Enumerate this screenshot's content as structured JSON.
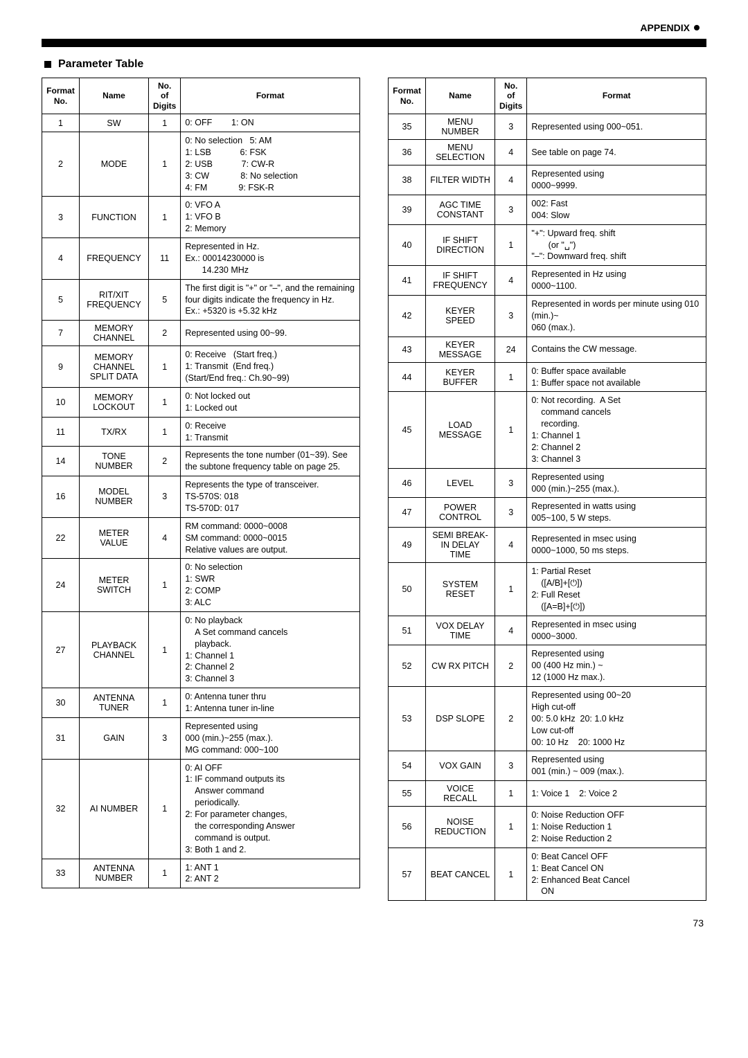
{
  "header": {
    "appendix": "APPENDIX"
  },
  "section_title": "Parameter Table",
  "page_number": "73",
  "table_left": {
    "headers": [
      "Format No.",
      "Name",
      "No. of Digits",
      "Format"
    ],
    "rows": [
      {
        "no": "1",
        "name": "SW",
        "digits": "1",
        "fmt": "0: OFF        1: ON"
      },
      {
        "no": "2",
        "name": "MODE",
        "digits": "1",
        "fmt": "0: No selection   5: AM\n1: LSB            6: FSK\n2: USB            7: CW-R\n3: CW             8: No selection\n4: FM             9: FSK-R"
      },
      {
        "no": "3",
        "name": "FUNCTION",
        "digits": "1",
        "fmt": "0: VFO A\n1: VFO B\n2: Memory"
      },
      {
        "no": "4",
        "name": "FREQUENCY",
        "digits": "11",
        "fmt": "Represented in Hz.\nEx.: 00014230000 is\n       14.230 MHz"
      },
      {
        "no": "5",
        "name": "RIT/XIT FREQUENCY",
        "digits": "5",
        "fmt": "The first digit is \"+\" or \"–\", and the remaining four digits indicate the frequency in Hz.\nEx.: +5320 is +5.32 kHz"
      },
      {
        "no": "7",
        "name": "MEMORY CHANNEL",
        "digits": "2",
        "fmt": "Represented using 00~99."
      },
      {
        "no": "9",
        "name": "MEMORY CHANNEL SPLIT DATA",
        "digits": "1",
        "fmt": "0: Receive   (Start freq.)\n1: Transmit  (End freq.)\n(Start/End freq.: Ch.90~99)"
      },
      {
        "no": "10",
        "name": "MEMORY LOCKOUT",
        "digits": "1",
        "fmt": "0: Not locked out\n1: Locked out"
      },
      {
        "no": "11",
        "name": "TX/RX",
        "digits": "1",
        "fmt": "0: Receive\n1: Transmit"
      },
      {
        "no": "14",
        "name": "TONE NUMBER",
        "digits": "2",
        "fmt": "Represents the tone number (01~39). See the subtone frequency table on page 25."
      },
      {
        "no": "16",
        "name": "MODEL NUMBER",
        "digits": "3",
        "fmt": "Represents the type of transceiver.\nTS-570S: 018\nTS-570D: 017"
      },
      {
        "no": "22",
        "name": "METER VALUE",
        "digits": "4",
        "fmt": "RM command: 0000~0008\nSM command: 0000~0015\nRelative values are output."
      },
      {
        "no": "24",
        "name": "METER SWITCH",
        "digits": "1",
        "fmt": "0: No selection\n1: SWR\n2: COMP\n3: ALC"
      },
      {
        "no": "27",
        "name": "PLAYBACK CHANNEL",
        "digits": "1",
        "fmt": "0: No playback\n    A Set command cancels\n    playback.\n1: Channel 1\n2: Channel 2\n3: Channel 3"
      },
      {
        "no": "30",
        "name": "ANTENNA TUNER",
        "digits": "1",
        "fmt": "0: Antenna tuner thru\n1: Antenna tuner in-line"
      },
      {
        "no": "31",
        "name": "GAIN",
        "digits": "3",
        "fmt": "Represented using\n000 (min.)~255 (max.).\nMG command: 000~100"
      },
      {
        "no": "32",
        "name": "AI NUMBER",
        "digits": "1",
        "fmt": "0: AI OFF\n1: IF command outputs its\n    Answer command\n    periodically.\n2: For parameter changes,\n    the corresponding Answer\n    command is output.\n3: Both 1 and 2."
      },
      {
        "no": "33",
        "name": "ANTENNA NUMBER",
        "digits": "1",
        "fmt": "1: ANT 1\n2: ANT 2"
      }
    ]
  },
  "table_right": {
    "headers": [
      "Format No.",
      "Name",
      "No. of Digits",
      "Format"
    ],
    "rows": [
      {
        "no": "35",
        "name": "MENU NUMBER",
        "digits": "3",
        "fmt": "Represented using 000~051."
      },
      {
        "no": "36",
        "name": "MENU SELECTION",
        "digits": "4",
        "fmt": "See table on page 74."
      },
      {
        "no": "38",
        "name": "FILTER WIDTH",
        "digits": "4",
        "fmt": "Represented using\n0000~9999."
      },
      {
        "no": "39",
        "name": "AGC TIME CONSTANT",
        "digits": "3",
        "fmt": "002: Fast\n004: Slow"
      },
      {
        "no": "40",
        "name": "IF SHIFT DIRECTION",
        "digits": "1",
        "fmt": "\"+\": Upward freq. shift\n       (or \"␣\")\n\"–\": Downward freq. shift"
      },
      {
        "no": "41",
        "name": "IF SHIFT FREQUENCY",
        "digits": "4",
        "fmt": "Represented in Hz using\n0000~1100."
      },
      {
        "no": "42",
        "name": "KEYER SPEED",
        "digits": "3",
        "fmt": "Represented in words per minute using 010 (min.)~\n060 (max.)."
      },
      {
        "no": "43",
        "name": "KEYER MESSAGE",
        "digits": "24",
        "fmt": "Contains the CW message."
      },
      {
        "no": "44",
        "name": "KEYER BUFFER",
        "digits": "1",
        "fmt": "0: Buffer space available\n1: Buffer space not available"
      },
      {
        "no": "45",
        "name": "LOAD MESSAGE",
        "digits": "1",
        "fmt": "0: Not recording.  A Set\n    command cancels\n    recording.\n1: Channel 1\n2: Channel 2\n3: Channel 3"
      },
      {
        "no": "46",
        "name": "LEVEL",
        "digits": "3",
        "fmt": "Represented using\n000 (min.)~255 (max.)."
      },
      {
        "no": "47",
        "name": "POWER CONTROL",
        "digits": "3",
        "fmt": "Represented in watts using\n005~100, 5 W steps."
      },
      {
        "no": "49",
        "name": "SEMI BREAK-IN DELAY TIME",
        "digits": "4",
        "fmt": "Represented in msec using\n0000~1000, 50 ms steps."
      },
      {
        "no": "50",
        "name": "SYSTEM RESET",
        "digits": "1",
        "fmt": "1: Partial Reset\n    ([A/B]+[⏻])\n2: Full Reset\n    ([A=B]+[⏻])"
      },
      {
        "no": "51",
        "name": "VOX DELAY TIME",
        "digits": "4",
        "fmt": "Represented in msec using\n0000~3000."
      },
      {
        "no": "52",
        "name": "CW RX PITCH",
        "digits": "2",
        "fmt": "Represented using\n00 (400 Hz min.) ~\n12 (1000 Hz max.)."
      },
      {
        "no": "53",
        "name": "DSP SLOPE",
        "digits": "2",
        "fmt": "Represented using 00~20\nHigh cut-off\n00: 5.0 kHz  20: 1.0 kHz\nLow cut-off\n00: 10 Hz    20: 1000 Hz"
      },
      {
        "no": "54",
        "name": "VOX GAIN",
        "digits": "3",
        "fmt": "Represented using\n001 (min.) ~ 009 (max.)."
      },
      {
        "no": "55",
        "name": "VOICE RECALL",
        "digits": "1",
        "fmt": "1: Voice 1    2: Voice 2"
      },
      {
        "no": "56",
        "name": "NOISE REDUCTION",
        "digits": "1",
        "fmt": "0: Noise Reduction OFF\n1: Noise Reduction 1\n2: Noise Reduction 2"
      },
      {
        "no": "57",
        "name": "BEAT CANCEL",
        "digits": "1",
        "fmt": "0: Beat Cancel OFF\n1: Beat Cancel ON\n2: Enhanced Beat Cancel\n    ON"
      }
    ]
  }
}
